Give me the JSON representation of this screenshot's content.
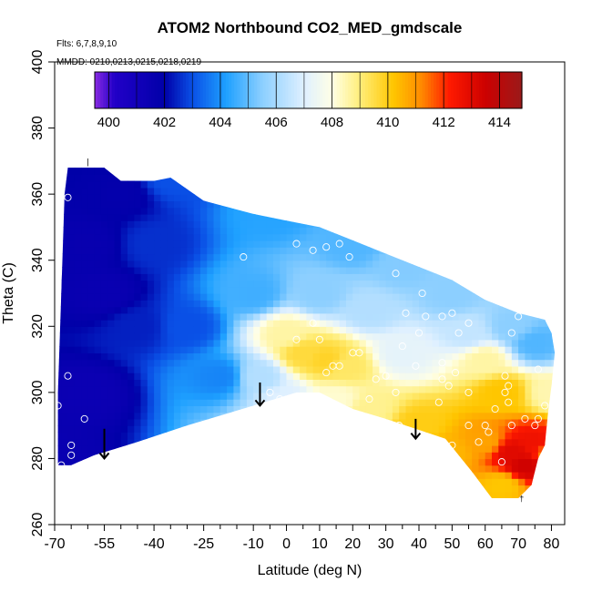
{
  "chart_data": {
    "type": "heatmap",
    "title": "ATOM2 Northbound CO2_MED_gmdscale",
    "flights_label": "Flts: 6,7,8,9,10",
    "dates_label": "MMDD: 0210,0213,0215,0218,0219",
    "xlabel": "Latitude (deg N)",
    "ylabel": "Theta (C)",
    "xlim": [
      -70,
      84
    ],
    "ylim": [
      260,
      400
    ],
    "x_ticks": [
      -70,
      -55,
      -40,
      -25,
      -10,
      0,
      10,
      20,
      30,
      40,
      50,
      60,
      70,
      80
    ],
    "x_ticks_minor": [
      -65,
      -60,
      -50,
      -45,
      -35,
      -30,
      -20,
      -15,
      -5,
      5,
      15,
      25,
      35,
      45,
      55,
      65,
      75
    ],
    "y_ticks": [
      260,
      280,
      300,
      320,
      340,
      360,
      380,
      400
    ],
    "colorbar": {
      "min": 399.5,
      "max": 414.8,
      "ticks": [
        400,
        402,
        404,
        406,
        408,
        410,
        412,
        414
      ],
      "stops": [
        {
          "v": 399.5,
          "c": "#8a2be2"
        },
        {
          "v": 400.2,
          "c": "#2200c8"
        },
        {
          "v": 402.0,
          "c": "#0000a8"
        },
        {
          "v": 403.0,
          "c": "#0a50e6"
        },
        {
          "v": 404.2,
          "c": "#1ea0ff"
        },
        {
          "v": 405.5,
          "c": "#8ccfff"
        },
        {
          "v": 407.0,
          "c": "#dff0ff"
        },
        {
          "v": 408.0,
          "c": "#ffffe6"
        },
        {
          "v": 409.0,
          "c": "#ffee7a"
        },
        {
          "v": 410.2,
          "c": "#ffc600"
        },
        {
          "v": 411.2,
          "c": "#ff8a00"
        },
        {
          "v": 412.2,
          "c": "#ff1a00"
        },
        {
          "v": 413.5,
          "c": "#cc0000"
        },
        {
          "v": 414.8,
          "c": "#9a1a1a"
        }
      ]
    },
    "field_knots": [
      {
        "lat": -70,
        "theta": 280,
        "co2": 401.5
      },
      {
        "lat": -60,
        "theta": 300,
        "co2": 401.4
      },
      {
        "lat": -55,
        "theta": 330,
        "co2": 401.5
      },
      {
        "lat": -50,
        "theta": 360,
        "co2": 401.8
      },
      {
        "lat": -40,
        "theta": 345,
        "co2": 402.6
      },
      {
        "lat": -30,
        "theta": 320,
        "co2": 403.0
      },
      {
        "lat": -20,
        "theta": 305,
        "co2": 403.8
      },
      {
        "lat": -35,
        "theta": 365,
        "co2": 403.0
      },
      {
        "lat": -5,
        "theta": 355,
        "co2": 404.3
      },
      {
        "lat": -10,
        "theta": 330,
        "co2": 404.6
      },
      {
        "lat": -8,
        "theta": 305,
        "co2": 406.2
      },
      {
        "lat": 0,
        "theta": 318,
        "co2": 408.6
      },
      {
        "lat": 5,
        "theta": 312,
        "co2": 409.6
      },
      {
        "lat": 12,
        "theta": 310,
        "co2": 409.8
      },
      {
        "lat": 18,
        "theta": 308,
        "co2": 409.2
      },
      {
        "lat": 10,
        "theta": 330,
        "co2": 405.5
      },
      {
        "lat": 25,
        "theta": 325,
        "co2": 406.2
      },
      {
        "lat": 20,
        "theta": 345,
        "co2": 404.8
      },
      {
        "lat": 35,
        "theta": 338,
        "co2": 405.4
      },
      {
        "lat": 35,
        "theta": 312,
        "co2": 407.2
      },
      {
        "lat": 50,
        "theta": 330,
        "co2": 405.5
      },
      {
        "lat": 55,
        "theta": 318,
        "co2": 406.5
      },
      {
        "lat": 60,
        "theta": 310,
        "co2": 408.6
      },
      {
        "lat": 65,
        "theta": 300,
        "co2": 410.2
      },
      {
        "lat": 68,
        "theta": 320,
        "co2": 405.5
      },
      {
        "lat": 75,
        "theta": 315,
        "co2": 404.8
      },
      {
        "lat": 80,
        "theta": 300,
        "co2": 408.5
      },
      {
        "lat": 25,
        "theta": 295,
        "co2": 408.8
      },
      {
        "lat": 40,
        "theta": 290,
        "co2": 410.0
      },
      {
        "lat": 50,
        "theta": 282,
        "co2": 410.5
      },
      {
        "lat": 60,
        "theta": 285,
        "co2": 410.8
      },
      {
        "lat": 68,
        "theta": 282,
        "co2": 413.0
      },
      {
        "lat": 72,
        "theta": 278,
        "co2": 413.4
      },
      {
        "lat": 75,
        "theta": 285,
        "co2": 412.6
      },
      {
        "lat": 65,
        "theta": 272,
        "co2": 410.2
      },
      {
        "lat": 80,
        "theta": 282,
        "co2": 411.0
      },
      {
        "lat": -60,
        "theta": 345,
        "co2": 401.6
      },
      {
        "lat": -45,
        "theta": 320,
        "co2": 402.4
      },
      {
        "lat": 0,
        "theta": 298,
        "co2": 407.0
      },
      {
        "lat": 15,
        "theta": 298,
        "co2": 408.2
      }
    ],
    "domain_boundary": [
      [
        -66,
        368
      ],
      [
        -55,
        368
      ],
      [
        -50,
        364
      ],
      [
        -40,
        364
      ],
      [
        -35,
        365
      ],
      [
        -25,
        358
      ],
      [
        -10,
        354
      ],
      [
        0,
        352
      ],
      [
        10,
        350
      ],
      [
        20,
        346
      ],
      [
        30,
        342
      ],
      [
        40,
        338
      ],
      [
        50,
        334
      ],
      [
        60,
        328
      ],
      [
        70,
        324
      ],
      [
        78,
        322
      ],
      [
        80,
        318
      ],
      [
        81,
        312
      ],
      [
        80,
        302
      ],
      [
        79,
        294
      ],
      [
        78,
        284
      ],
      [
        76,
        280
      ],
      [
        74,
        272
      ],
      [
        70,
        268
      ],
      [
        62,
        268
      ],
      [
        56,
        276
      ],
      [
        48,
        286
      ],
      [
        30,
        292
      ],
      [
        20,
        295
      ],
      [
        10,
        300
      ],
      [
        3,
        300
      ],
      [
        -10,
        296
      ],
      [
        -30,
        290
      ],
      [
        -45,
        285
      ],
      [
        -58,
        281
      ],
      [
        -65,
        278
      ],
      [
        -69,
        278
      ],
      [
        -69,
        300
      ],
      [
        -68,
        330
      ],
      [
        -67,
        360
      ]
    ],
    "observation_points": [
      [
        -66,
        359
      ],
      [
        -66,
        305
      ],
      [
        -69,
        296
      ],
      [
        -61,
        292
      ],
      [
        -65,
        284
      ],
      [
        -65,
        281
      ],
      [
        -68,
        278
      ],
      [
        -13,
        341
      ],
      [
        3,
        345
      ],
      [
        8,
        343
      ],
      [
        12,
        344
      ],
      [
        16,
        345
      ],
      [
        19,
        341
      ],
      [
        27,
        347
      ],
      [
        33,
        336
      ],
      [
        8,
        321
      ],
      [
        3,
        316
      ],
      [
        10,
        316
      ],
      [
        12,
        306
      ],
      [
        14,
        308
      ],
      [
        16,
        308
      ],
      [
        20,
        312
      ],
      [
        22,
        312
      ],
      [
        27,
        304
      ],
      [
        35,
        314
      ],
      [
        41,
        330
      ],
      [
        42,
        323
      ],
      [
        47,
        323
      ],
      [
        50,
        324
      ],
      [
        55,
        321
      ],
      [
        52,
        318
      ],
      [
        47,
        309
      ],
      [
        51,
        306
      ],
      [
        47,
        304
      ],
      [
        49,
        302
      ],
      [
        55,
        300
      ],
      [
        46,
        297
      ],
      [
        36,
        324
      ],
      [
        40,
        318
      ],
      [
        39,
        308
      ],
      [
        30,
        305
      ],
      [
        33,
        300
      ],
      [
        25,
        298
      ],
      [
        34,
        290
      ],
      [
        19,
        294
      ],
      [
        -5,
        300
      ],
      [
        -2,
        298
      ],
      [
        1,
        298
      ],
      [
        47,
        285
      ],
      [
        50,
        284
      ],
      [
        55,
        290
      ],
      [
        58,
        285
      ],
      [
        60,
        290
      ],
      [
        61,
        288
      ],
      [
        63,
        295
      ],
      [
        66,
        305
      ],
      [
        67,
        302
      ],
      [
        66,
        300
      ],
      [
        67,
        297
      ],
      [
        68,
        290
      ],
      [
        72,
        292
      ],
      [
        75,
        290
      ],
      [
        65,
        279
      ],
      [
        70,
        323
      ],
      [
        80,
        322
      ],
      [
        80,
        321
      ],
      [
        76,
        307
      ],
      [
        78,
        296
      ],
      [
        76,
        292
      ],
      [
        68,
        318
      ]
    ],
    "arrows": [
      {
        "lat": -55,
        "theta_from": 289,
        "theta_to": 280
      },
      {
        "lat": -8,
        "theta_from": 303,
        "theta_to": 296
      },
      {
        "lat": 39,
        "theta_from": 292,
        "theta_to": 286
      }
    ],
    "annotations": [
      {
        "text": "|",
        "lat": -60,
        "theta": 369
      },
      {
        "text": "†",
        "lat": 71,
        "theta": 267
      }
    ]
  }
}
